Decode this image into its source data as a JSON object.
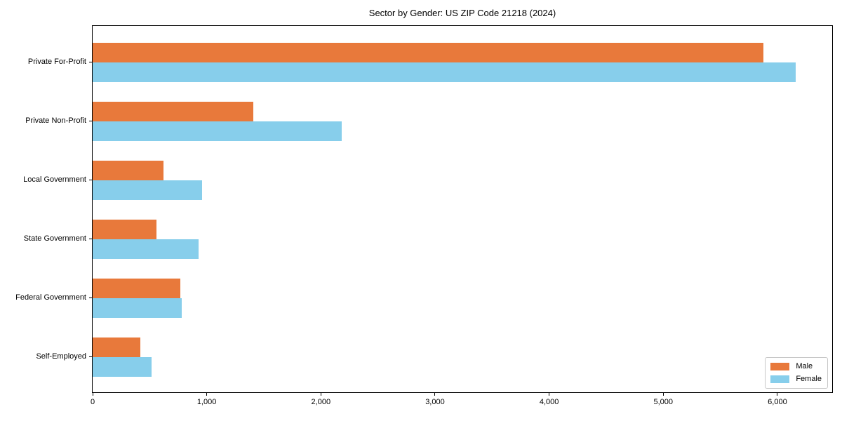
{
  "chart_data": {
    "type": "bar",
    "orientation": "horizontal",
    "title": "Sector by Gender: US ZIP Code 21218 (2024)",
    "categories": [
      "Private For-Profit",
      "Private Non-Profit",
      "Local Government",
      "State Government",
      "Federal Government",
      "Self-Employed"
    ],
    "series": [
      {
        "name": "Male",
        "color": "#e8793b",
        "values": [
          5880,
          1410,
          620,
          560,
          770,
          420
        ]
      },
      {
        "name": "Female",
        "color": "#87ceeb",
        "values": [
          6160,
          2180,
          960,
          930,
          780,
          515
        ]
      }
    ],
    "xlabel": "",
    "ylabel": "",
    "xlim": [
      0,
      6480
    ],
    "xticks": [
      0,
      1000,
      2000,
      3000,
      4000,
      5000,
      6000
    ],
    "xtick_labels": [
      "0",
      "1,000",
      "2,000",
      "3,000",
      "4,000",
      "5,000",
      "6,000"
    ],
    "grid": false,
    "legend_position": "lower right"
  },
  "colors": {
    "background": "#ffffff",
    "spine": "#000000",
    "text": "#000000",
    "legend_border": "#c8c8c8"
  }
}
